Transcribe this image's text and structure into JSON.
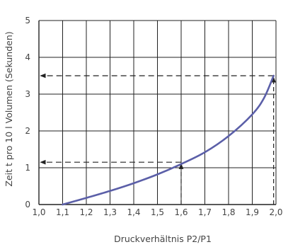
{
  "chart_data": {
    "type": "line",
    "xlabel": "Druckverhältnis  P2/P1",
    "ylabel": "Zeit t pro 10 l Volumen (Sekunden)",
    "xlim": [
      1.0,
      2.0
    ],
    "ylim": [
      0,
      5
    ],
    "x_ticks": [
      "1,0",
      "1,1",
      "1,2",
      "1,3",
      "1,4",
      "1,5",
      "1,6",
      "1,7",
      "1,8",
      "1,9",
      "2,0"
    ],
    "y_ticks": [
      "0",
      "1",
      "2",
      "3",
      "4",
      "5"
    ],
    "grid": true,
    "series": [
      {
        "color": "#5b5fa8",
        "x": [
          1.1,
          1.2,
          1.3,
          1.4,
          1.5,
          1.6,
          1.7,
          1.8,
          1.9,
          1.95,
          1.99
        ],
        "y": [
          0.0,
          0.18,
          0.37,
          0.58,
          0.82,
          1.1,
          1.42,
          1.86,
          2.45,
          2.9,
          3.5
        ]
      }
    ],
    "annotations": [
      {
        "type": "dashed-guide",
        "x": 1.6,
        "y": 1.15,
        "color": "#222222"
      },
      {
        "type": "dashed-guide",
        "x": 1.99,
        "y": 3.5,
        "color": "#222222"
      }
    ]
  }
}
